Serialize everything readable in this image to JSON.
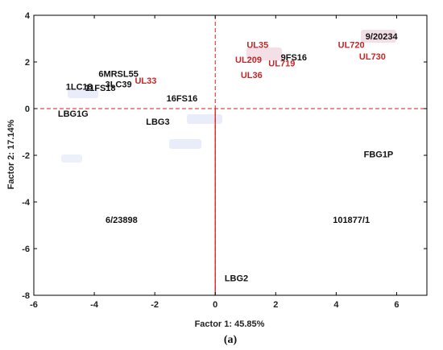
{
  "chart_data": {
    "type": "scatter",
    "xlabel": "Factor 1: 45.85%",
    "ylabel": "Factor 2: 17.14%",
    "caption": "(a)",
    "xlim": [
      -6,
      7
    ],
    "ylim": [
      -8,
      4
    ],
    "xticks": [
      -6,
      -4,
      -2,
      0,
      2,
      4,
      6
    ],
    "yticks": [
      4,
      2,
      0,
      -2,
      -4,
      -6,
      -8
    ],
    "xtick_labels": [
      "-6",
      "-4",
      "-2",
      "0",
      "2",
      "4",
      "6"
    ],
    "ytick_labels": [
      "4",
      "2",
      "0",
      "-2",
      "-4",
      "-6",
      "-8"
    ],
    "grid": false,
    "reference_lines": {
      "x": 0,
      "y": 0,
      "color": "#d42020"
    },
    "points": [
      {
        "label": "9/20234",
        "x": 5.5,
        "y": 3.1,
        "group": "black"
      },
      {
        "label": "UL720",
        "x": 4.5,
        "y": 2.75,
        "group": "red"
      },
      {
        "label": "UL730",
        "x": 5.2,
        "y": 2.25,
        "group": "red"
      },
      {
        "label": "UL35",
        "x": 1.4,
        "y": 2.75,
        "group": "red"
      },
      {
        "label": "9FS16",
        "x": 2.6,
        "y": 2.2,
        "group": "black"
      },
      {
        "label": "UL209",
        "x": 1.1,
        "y": 2.1,
        "group": "red"
      },
      {
        "label": "UL719",
        "x": 2.2,
        "y": 1.95,
        "group": "red"
      },
      {
        "label": "UL36",
        "x": 1.2,
        "y": 1.45,
        "group": "red"
      },
      {
        "label": "6MRSL55",
        "x": -3.2,
        "y": 1.5,
        "group": "black"
      },
      {
        "label": "3LC39",
        "x": -3.2,
        "y": 1.05,
        "group": "black"
      },
      {
        "label": "UL33",
        "x": -2.3,
        "y": 1.2,
        "group": "red"
      },
      {
        "label": "1LC18",
        "x": -4.5,
        "y": 0.95,
        "group": "black"
      },
      {
        "label": "11FS18",
        "x": -3.8,
        "y": 0.9,
        "group": "black"
      },
      {
        "label": "16FS16",
        "x": -1.1,
        "y": 0.45,
        "group": "black"
      },
      {
        "label": "LBG1G",
        "x": -4.7,
        "y": -0.2,
        "group": "black"
      },
      {
        "label": "LBG3",
        "x": -1.9,
        "y": -0.55,
        "group": "black"
      },
      {
        "label": "FBG1P",
        "x": 5.4,
        "y": -1.95,
        "group": "black"
      },
      {
        "label": "6/23898",
        "x": -3.1,
        "y": -4.75,
        "group": "black"
      },
      {
        "label": "101877/1",
        "x": 4.5,
        "y": -4.75,
        "group": "black"
      },
      {
        "label": "LBG2",
        "x": 0.7,
        "y": -7.25,
        "group": "black"
      }
    ],
    "colors": {
      "axis_line": "#d42020",
      "red_label": "#c0282a",
      "black_label": "#111111"
    }
  }
}
